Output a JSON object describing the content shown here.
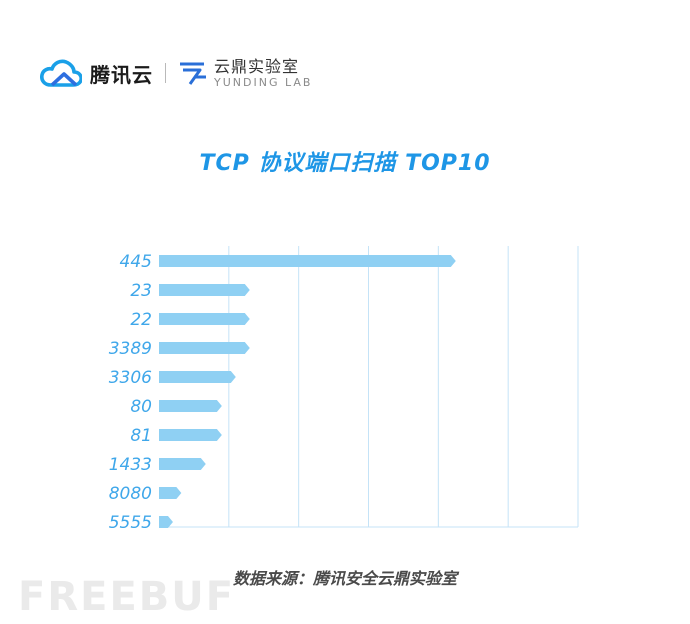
{
  "header": {
    "tencent_name": "腾讯云",
    "lab_name_cn": "云鼎实验室",
    "lab_name_en": "YUNDING LAB"
  },
  "colors": {
    "title": "#1e96e6",
    "bar": "#8fd0f3",
    "tick_label": "#3fa7ea",
    "grid": "#c5e3f7"
  },
  "chart_data": {
    "type": "bar",
    "orientation": "horizontal",
    "title": "TCP 协议端口扫描 TOP10",
    "categories": [
      "445",
      "23",
      "22",
      "3389",
      "3306",
      "80",
      "81",
      "1433",
      "8080",
      "5555"
    ],
    "values": [
      42.5,
      13.0,
      13.0,
      13.0,
      11.0,
      9.0,
      9.0,
      6.7,
      3.2,
      2.0
    ],
    "xlim": [
      0,
      60
    ],
    "x_gridlines": [
      10,
      20,
      30,
      40,
      50,
      60
    ],
    "x_tick_labels_shown": false,
    "grid": true,
    "legend": "none"
  },
  "footer": {
    "source": "数据来源：腾讯安全云鼎实验室",
    "watermark": "FREEBUF"
  }
}
